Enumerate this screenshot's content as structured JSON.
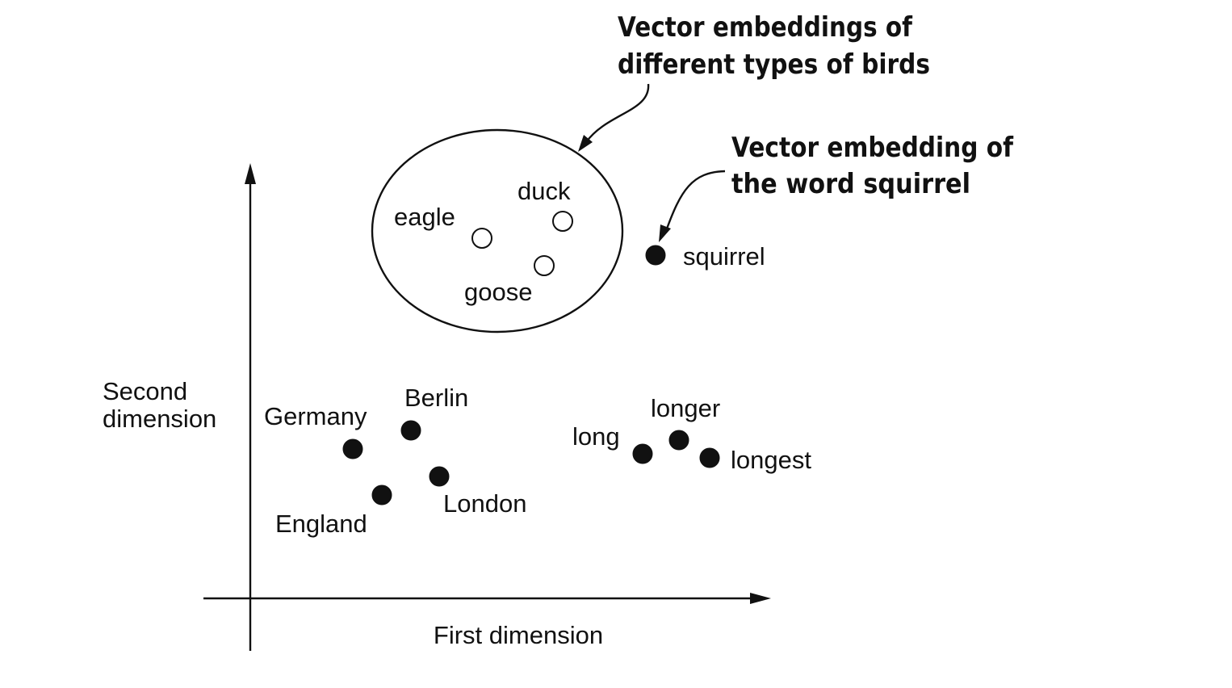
{
  "axes": {
    "x_label": "First dimension",
    "y_label_line1": "Second",
    "y_label_line2": "dimension"
  },
  "callouts": {
    "birds_line1": "Vector embeddings of",
    "birds_line2": "different types of birds",
    "squirrel_line1": "Vector embedding of",
    "squirrel_line2": "the word squirrel"
  },
  "words": {
    "eagle": "eagle",
    "duck": "duck",
    "goose": "goose",
    "squirrel": "squirrel",
    "germany": "Germany",
    "berlin": "Berlin",
    "london": "London",
    "england": "England",
    "long": "long",
    "longer": "longer",
    "longest": "longest"
  },
  "colors": {
    "ink": "#111111",
    "background": "#ffffff"
  }
}
